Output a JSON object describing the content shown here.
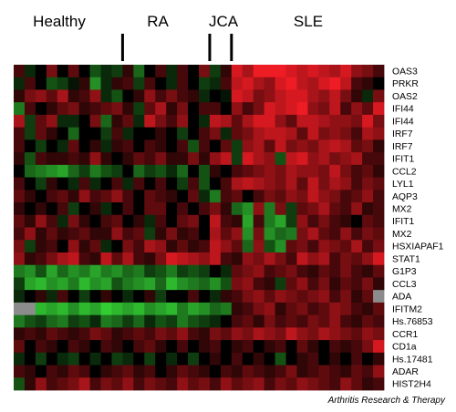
{
  "chart_data": {
    "type": "heatmap",
    "title": "",
    "groups": [
      {
        "name": "Healthy",
        "cols": [
          0,
          9
        ]
      },
      {
        "name": "RA",
        "cols": [
          10,
          17
        ]
      },
      {
        "name": "JCA",
        "cols": [
          18,
          19
        ]
      },
      {
        "name": "SLE",
        "cols": [
          20,
          33
        ]
      }
    ],
    "separator_after_columns": [
      9,
      17,
      19
    ],
    "genes": [
      "OAS3",
      "PRKR",
      "OAS2",
      "IFI44",
      "IFI44",
      "IRF7",
      "IRF7",
      "IFIT1",
      "CCL2",
      "LYL1",
      "AQP3",
      "MX2",
      "IFIT1",
      "MX2",
      "HSXIAPAF1",
      "STAT1",
      "G1P3",
      "CCL3",
      "ADA",
      "IFITM2",
      "Hs.76853",
      "CCR1",
      "CD1a",
      "Hs.17481",
      "ADAR",
      "HIST2H4"
    ],
    "n_samples": 34,
    "color_scale": {
      "low": "#33cc33",
      "mid": "#000000",
      "high": "#ee1c24",
      "missing": "#8c8c8c"
    },
    "values": [
      [
        0.3,
        -0.2,
        0,
        0.5,
        0,
        0.4,
        0,
        -0.4,
        -0.2,
        -0.3,
        0.2,
        -0.5,
        0,
        0.3,
        -0.2,
        0.3,
        0,
        0.5,
        -0.3,
        0.2,
        0.9,
        0.7,
        1,
        1,
        1,
        0.9,
        0.8,
        0.9,
        0.8,
        0.7,
        0.9,
        0.6,
        0.5,
        0.3
      ],
      [
        -0.2,
        0.3,
        0,
        -0.4,
        -0.3,
        -0.1,
        0.2,
        -0.7,
        -0.2,
        0.2,
        0.3,
        -0.3,
        0.3,
        0,
        -0.2,
        0.3,
        0,
        -0.3,
        -0.2,
        0.3,
        0.8,
        0.9,
        0.7,
        0.6,
        0.9,
        1,
        0.8,
        0.7,
        0.9,
        1,
        0.8,
        0.3,
        0.2,
        0
      ],
      [
        0.2,
        0.5,
        0.6,
        0.4,
        0.7,
        0.2,
        0.3,
        0.6,
        -0.2,
        -0.4,
        0,
        0.2,
        0.6,
        0.3,
        0.5,
        0.3,
        0.2,
        -0.2,
        0,
        -0.1,
        0.9,
        0.8,
        0.5,
        0.6,
        0.8,
        0.9,
        0.9,
        0.7,
        0.6,
        0.8,
        0.5,
        0.2,
        -0.2,
        0.5
      ],
      [
        -0.6,
        0.3,
        0,
        0.2,
        0.4,
        0.5,
        0.2,
        0.3,
        0.4,
        0.5,
        0.2,
        -0.3,
        0.4,
        0.7,
        0.2,
        0.5,
        0,
        0.3,
        0.3,
        0,
        0.6,
        0.3,
        0.5,
        0.9,
        0.8,
        0.9,
        1,
        0.6,
        0.5,
        0.8,
        0.3,
        0.6,
        0.4,
        0.9
      ],
      [
        0.7,
        -0.3,
        0.4,
        0.6,
        -0.2,
        -0.2,
        0,
        0.5,
        -0.5,
        0.2,
        0.4,
        -0.2,
        0.8,
        0.5,
        0.3,
        0.6,
        0,
        -0.2,
        0.8,
        0.7,
        0.4,
        0.7,
        0.9,
        0.9,
        0.6,
        0.4,
        0.8,
        0.8,
        0.7,
        0.6,
        0.6,
        0.5,
        0.9,
        0.5
      ],
      [
        0.3,
        -0.3,
        0.4,
        0.2,
        0,
        -0.5,
        0,
        0,
        -0.3,
        0.3,
        -0.2,
        0,
        0,
        0.2,
        0,
        -0.3,
        0,
        0.3,
        0.5,
        -0.2,
        0.4,
        0.5,
        0.7,
        0.8,
        0.8,
        0.7,
        0.4,
        0.8,
        0.5,
        0.6,
        0.5,
        0.3,
        0.7,
        0.6
      ],
      [
        0.3,
        0,
        -0.3,
        0,
        -0.2,
        0.4,
        0,
        0.2,
        -0.2,
        0.2,
        0.3,
        0,
        0.3,
        0.2,
        0,
        0.3,
        -0.4,
        0.3,
        0,
        0.4,
        -0.3,
        0.6,
        0.7,
        0.4,
        0.8,
        0.5,
        0.6,
        0.5,
        0.7,
        0.8,
        0.7,
        0.4,
        0.5,
        0.2
      ],
      [
        0.2,
        -0.4,
        0.3,
        0.2,
        0.2,
        0.3,
        0.2,
        0.6,
        0.2,
        0,
        0.2,
        0.4,
        0.3,
        0.5,
        0.2,
        0.2,
        0.5,
        0.2,
        0.6,
        0.8,
        -0.3,
        0.9,
        0.7,
        0.6,
        -0.4,
        0.8,
        0.9,
        0.6,
        0.7,
        0.5,
        0.6,
        0.7,
        0.3,
        0.3
      ],
      [
        0,
        -0.5,
        -0.6,
        -0.7,
        -0.8,
        -0.5,
        -0.3,
        -0.6,
        -0.4,
        -0.3,
        0,
        -0.5,
        -0.3,
        -0.4,
        -0.2,
        -0.5,
        0,
        -0.4,
        0.2,
        0,
        0.3,
        0.4,
        0.5,
        0.6,
        0.5,
        0.7,
        0.6,
        0.6,
        0.5,
        0.8,
        0.5,
        0.3,
        0.4,
        0.2
      ],
      [
        0.3,
        0,
        -0.3,
        0.2,
        0,
        -0.2,
        0.3,
        -0.2,
        0,
        0.3,
        -0.2,
        0.3,
        0,
        0.3,
        0,
        -0.3,
        0.3,
        -0.4,
        0,
        0.3,
        0.7,
        0.8,
        0.7,
        0.6,
        0.5,
        0.7,
        0.4,
        0.8,
        0.5,
        0.7,
        0.6,
        0.3,
        0.5,
        0.4
      ],
      [
        0.4,
        0.2,
        0,
        0.3,
        0.4,
        0.2,
        0.6,
        0.3,
        0.4,
        0.6,
        0.3,
        0,
        0.4,
        0.3,
        0.2,
        0,
        0.4,
        -0.2,
        -0.6,
        0.3,
        0.4,
        0,
        0.3,
        0.5,
        0.4,
        0.6,
        0.5,
        0.8,
        0.6,
        0.5,
        0.3,
        0.4,
        0.6,
        0.3
      ],
      [
        0.2,
        0,
        0.2,
        0,
        0.3,
        -0.3,
        0,
        0.2,
        -0.2,
        0,
        0.3,
        0,
        0.4,
        0.4,
        0,
        0.3,
        0,
        0.3,
        0.5,
        0.2,
        -0.5,
        -0.7,
        0.6,
        -0.6,
        0.5,
        -0.3,
        0.4,
        0.5,
        0.7,
        0.4,
        0.3,
        0.6,
        0.2,
        0.3
      ],
      [
        0.4,
        0.2,
        0.6,
        0.3,
        -0.2,
        0.5,
        0.2,
        0,
        0.3,
        0.4,
        0,
        0.2,
        -0.2,
        0.3,
        0,
        0.4,
        0.5,
        0,
        0.8,
        0.3,
        0.2,
        -0.8,
        0.3,
        -0.6,
        -0.8,
        -0.3,
        0.6,
        0.3,
        0.5,
        0.3,
        0.2,
        0,
        0.4,
        0.3
      ],
      [
        0.3,
        0.6,
        0.2,
        0.4,
        0.2,
        0.3,
        0.4,
        0.2,
        0.2,
        0.6,
        0.3,
        0.4,
        -0.3,
        0.2,
        0.5,
        0.2,
        0.3,
        0,
        0.7,
        0.4,
        0.6,
        -0.7,
        0.5,
        -0.7,
        -0.5,
        -0.6,
        0.5,
        0.7,
        0.4,
        0.3,
        0.6,
        0.3,
        0.5,
        0.4
      ],
      [
        0.5,
        -0.3,
        0.2,
        0.3,
        0,
        0.6,
        0.2,
        0.4,
        -0.2,
        0,
        0.5,
        0.3,
        0.7,
        0.6,
        0.2,
        0.4,
        0.2,
        0.3,
        0.8,
        0.6,
        0.4,
        -0.5,
        0.6,
        -0.4,
        -0.7,
        0.4,
        0.5,
        0.3,
        0.6,
        0.5,
        0.4,
        0.7,
        0.3,
        0.5
      ],
      [
        0.6,
        0.2,
        0.3,
        0.5,
        0.7,
        0.8,
        0.3,
        0.2,
        0.8,
        0.4,
        0.7,
        0.3,
        0.2,
        0.5,
        0.9,
        0.8,
        0.7,
        0.6,
        0.8,
        0.3,
        0.2,
        0.6,
        0.5,
        0.7,
        0.5,
        0.3,
        0.8,
        0.6,
        0.7,
        0.3,
        0.5,
        0.4,
        0.6,
        0.9
      ],
      [
        -0.6,
        -0.7,
        -0.4,
        -0.8,
        -0.5,
        -0.7,
        -0.6,
        -0.8,
        -0.6,
        -0.7,
        -0.5,
        -0.6,
        -0.3,
        -0.4,
        -0.6,
        -0.3,
        -0.4,
        -0.3,
        0,
        -0.2,
        0.4,
        0.5,
        0.6,
        0.3,
        0.4,
        0.5,
        0.3,
        0.2,
        0.4,
        0.3,
        0.5,
        0.3,
        0.2,
        0.4
      ],
      [
        -0.3,
        -0.8,
        -0.9,
        -0.7,
        -0.8,
        -0.6,
        -0.9,
        -0.7,
        -0.8,
        -0.4,
        -0.6,
        -0.7,
        -0.8,
        -0.5,
        -0.9,
        -0.7,
        -0.6,
        -0.5,
        -0.7,
        -0.4,
        0.5,
        0.6,
        0.3,
        0.2,
        -0.3,
        0.4,
        0.6,
        0.3,
        0.5,
        0.2,
        0.4,
        0.3,
        0.5,
        0.2
      ],
      [
        -0.2,
        0,
        0.2,
        -0.2,
        0.3,
        0,
        -0.3,
        0,
        0.2,
        0,
        -0.2,
        0,
        0.2,
        -0.3,
        0,
        0,
        0.3,
        0,
        -0.2,
        0.2,
        0.3,
        0.5,
        0.6,
        0.4,
        0.6,
        0.5,
        0.4,
        0.5,
        0.6,
        0.3,
        0.5,
        0.2,
        0.4,
        null
      ],
      [
        null,
        null,
        -0.9,
        -0.8,
        -0.9,
        -0.7,
        -0.9,
        -0.8,
        -1,
        -0.9,
        -0.8,
        -0.9,
        -0.7,
        -0.8,
        -0.9,
        -0.6,
        -0.8,
        -0.7,
        -0.5,
        -0.6,
        0.2,
        0.3,
        0.5,
        0.6,
        0.2,
        0.4,
        0.5,
        0.3,
        0.4,
        0.6,
        0.5,
        0.3,
        0.2,
        0.4
      ],
      [
        -0.6,
        -0.4,
        -0.3,
        -0.5,
        -0.6,
        -0.3,
        -0.4,
        -0.2,
        -0.6,
        -0.5,
        -0.3,
        -0.5,
        -0.2,
        -0.4,
        -0.3,
        -0.6,
        -0.4,
        -0.3,
        -0.2,
        0,
        0.3,
        0.4,
        0.2,
        0.5,
        0.3,
        0.4,
        0.3,
        0.5,
        0.4,
        0.6,
        0.3,
        0.2,
        0.4,
        0.3
      ],
      [
        0.2,
        0.3,
        0.2,
        0.4,
        0.3,
        0.2,
        0.3,
        0.5,
        0.4,
        0.2,
        0.3,
        0.4,
        0.3,
        0.5,
        0.4,
        0.6,
        0.3,
        0.2,
        0.5,
        0.4,
        0.6,
        0.5,
        0.7,
        0.6,
        0.5,
        0.8,
        0.6,
        0.5,
        0.7,
        0.6,
        0.5,
        0.4,
        0.6,
        0.5
      ],
      [
        0.4,
        0,
        0.3,
        0.2,
        0,
        0.3,
        0.2,
        0,
        0.3,
        0.2,
        0,
        0.3,
        0.4,
        0.2,
        0,
        0.3,
        0,
        0.2,
        0.3,
        0,
        0.2,
        0.3,
        0,
        0.2,
        0.3,
        0,
        0.4,
        0.2,
        0,
        0.3,
        0.2,
        0.3,
        0.5,
        0.9
      ],
      [
        -0.2,
        0,
        -0.3,
        0,
        -0.2,
        -0.3,
        0,
        -0.2,
        0,
        -0.3,
        -0.2,
        0,
        -0.3,
        0,
        -0.2,
        0,
        -0.3,
        0,
        0.2,
        0,
        0.3,
        0,
        0.2,
        0,
        -0.4,
        0,
        0.2,
        0.3,
        0,
        0.2,
        0,
        0.3,
        0,
        0.2
      ],
      [
        0.3,
        0.2,
        0,
        0.3,
        0.2,
        0.4,
        0.3,
        0,
        0.2,
        0.3,
        0.4,
        0.2,
        0.3,
        0,
        0.2,
        0.4,
        0.3,
        0.2,
        0,
        0.3,
        0.2,
        0.4,
        0.3,
        0.2,
        0.3,
        0.5,
        0.2,
        0.3,
        0.4,
        0.3,
        0.2,
        0.4,
        0.3,
        0.6
      ],
      [
        -0.4,
        0.2,
        0.6,
        0.3,
        0.4,
        0.5,
        0.7,
        0.3,
        0.5,
        0.4,
        0.6,
        0.3,
        0.5,
        0.4,
        0.3,
        0.6,
        0.4,
        0.5,
        0.3,
        0.6,
        0.4,
        0.5,
        0.6,
        0.3,
        0.5,
        0.4,
        0.6,
        0.5,
        0.4,
        0.3,
        0.6,
        0.4,
        0.2,
        0.3
      ]
    ]
  },
  "credit": "Arthritis Research & Therapy"
}
